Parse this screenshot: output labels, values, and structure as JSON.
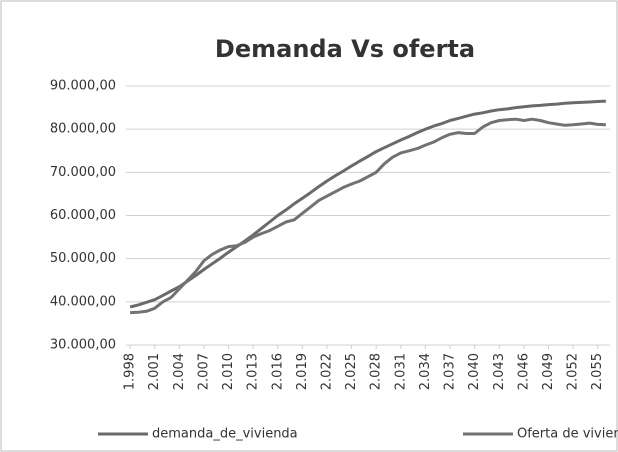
{
  "chart_data": {
    "type": "line",
    "title": "Demanda Vs oferta",
    "x": [
      1998,
      1999,
      2000,
      2001,
      2002,
      2003,
      2004,
      2005,
      2006,
      2007,
      2008,
      2009,
      2010,
      2011,
      2012,
      2013,
      2014,
      2015,
      2016,
      2017,
      2018,
      2019,
      2020,
      2021,
      2022,
      2023,
      2024,
      2025,
      2026,
      2027,
      2028,
      2029,
      2030,
      2031,
      2032,
      2033,
      2034,
      2035,
      2036,
      2037,
      2038,
      2039,
      2040,
      2041,
      2042,
      2043,
      2044,
      2045,
      2046,
      2047,
      2048,
      2049,
      2050,
      2051,
      2052,
      2053,
      2054,
      2055,
      2056
    ],
    "series": [
      {
        "name": "demanda_de_vivienda",
        "color": "#6a6a6a",
        "values": [
          38800,
          39300,
          39900,
          40500,
          41500,
          42500,
          43500,
          44800,
          46100,
          47500,
          48800,
          50100,
          51500,
          52800,
          54100,
          55500,
          57000,
          58500,
          60000,
          61300,
          62700,
          64000,
          65300,
          66700,
          68000,
          69200,
          70300,
          71500,
          72600,
          73700,
          74800,
          75700,
          76600,
          77500,
          78300,
          79200,
          80000,
          80700,
          81300,
          82000,
          82500,
          83000,
          83500,
          83800,
          84200,
          84500,
          84700,
          85000,
          85200,
          85400,
          85500,
          85700,
          85800,
          86000,
          86100,
          86200,
          86300,
          86400,
          86500
        ]
      },
      {
        "name": "Oferta de vivienda",
        "color": "#727272",
        "values": [
          37500,
          37600,
          37800,
          38500,
          40000,
          41000,
          43000,
          45000,
          47000,
          49500,
          51000,
          52000,
          52800,
          53000,
          53800,
          55000,
          55800,
          56500,
          57500,
          58500,
          59000,
          60500,
          62000,
          63500,
          64500,
          65500,
          66500,
          67300,
          68000,
          69000,
          70000,
          72000,
          73500,
          74500,
          75000,
          75500,
          76300,
          77000,
          78000,
          78800,
          79200,
          79000,
          79000,
          80500,
          81500,
          82000,
          82200,
          82300,
          82000,
          82300,
          82000,
          81500,
          81200,
          80900,
          81000,
          81200,
          81400,
          81100,
          81000
        ]
      }
    ],
    "xlim": [
      1997.5,
      2056.5
    ],
    "xticks": [
      {
        "value": 1998,
        "label": "1.998"
      },
      {
        "value": 2001,
        "label": "2.001"
      },
      {
        "value": 2004,
        "label": "2.004"
      },
      {
        "value": 2007,
        "label": "2.007"
      },
      {
        "value": 2010,
        "label": "2.010"
      },
      {
        "value": 2013,
        "label": "2.013"
      },
      {
        "value": 2016,
        "label": "2.016"
      },
      {
        "value": 2019,
        "label": "2.019"
      },
      {
        "value": 2022,
        "label": "2.022"
      },
      {
        "value": 2025,
        "label": "2.025"
      },
      {
        "value": 2028,
        "label": "2.028"
      },
      {
        "value": 2031,
        "label": "2.031"
      },
      {
        "value": 2034,
        "label": "2.034"
      },
      {
        "value": 2037,
        "label": "2.037"
      },
      {
        "value": 2040,
        "label": "2.040"
      },
      {
        "value": 2043,
        "label": "2.043"
      },
      {
        "value": 2046,
        "label": "2.046"
      },
      {
        "value": 2049,
        "label": "2.049"
      },
      {
        "value": 2052,
        "label": "2.052"
      },
      {
        "value": 2055,
        "label": "2.055"
      }
    ],
    "ylim": [
      30000,
      90000
    ],
    "yticks": [
      {
        "value": 30000,
        "label": "30.000,00"
      },
      {
        "value": 40000,
        "label": "40.000,00"
      },
      {
        "value": 50000,
        "label": "50.000,00"
      },
      {
        "value": 60000,
        "label": "60.000,00"
      },
      {
        "value": 70000,
        "label": "70.000,00"
      },
      {
        "value": 80000,
        "label": "80.000,00"
      },
      {
        "value": 90000,
        "label": "90.000,00"
      }
    ],
    "grid": true,
    "legend": "bottom"
  }
}
